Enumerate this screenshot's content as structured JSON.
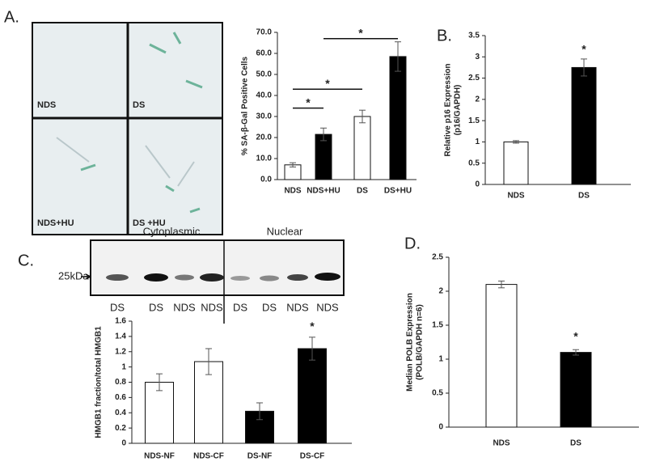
{
  "panel_labels": [
    "A.",
    "B.",
    "C.",
    "D."
  ],
  "micrographs": [
    {
      "label": "NDS"
    },
    {
      "label": "DS"
    },
    {
      "label": "NDS+HU"
    },
    {
      "label": "DS +HU"
    }
  ],
  "blot": {
    "headers": [
      "Cytoplasmic",
      "Nuclear"
    ],
    "marker": "25kDa",
    "lanes": [
      "DS",
      "DS",
      "NDS",
      "NDS",
      "DS",
      "DS",
      "NDS",
      "NDS"
    ]
  },
  "chart_data": [
    {
      "type": "bar",
      "ylabel": [
        "% SA-β-Gal Positive Cells"
      ],
      "categories": [
        "NDS",
        "NDS+HU",
        "DS",
        "DS+HU"
      ],
      "values": [
        7,
        21.5,
        30,
        58.5
      ],
      "errors": [
        1,
        3,
        3,
        7
      ],
      "colors": [
        "#ffffff",
        "#000000",
        "#ffffff",
        "#000000"
      ],
      "ylim": [
        0,
        70
      ],
      "yticks": [
        {
          "value": 0,
          "label": "0.0"
        },
        {
          "value": 10,
          "label": "10.0"
        },
        {
          "value": 20,
          "label": "20.0"
        },
        {
          "value": 30,
          "label": "30.0"
        },
        {
          "value": 40,
          "label": "40.0"
        },
        {
          "value": 50,
          "label": "50.0"
        },
        {
          "value": 60,
          "label": "60.0"
        },
        {
          "value": 70,
          "label": "70.0"
        }
      ],
      "annotations": [
        {
          "text": "*",
          "y": 34,
          "categories": [
            0,
            1
          ]
        },
        {
          "text": "*",
          "y": 43,
          "categories": [
            0,
            2
          ]
        },
        {
          "text": "*",
          "y": 67,
          "categories": [
            1,
            3
          ]
        }
      ]
    },
    {
      "type": "bar",
      "ylabel": [
        "Relative p16 Expression",
        "(p16/GAPDH)"
      ],
      "categories": [
        "NDS",
        "DS"
      ],
      "values": [
        1,
        2.75
      ],
      "errors": [
        0.03,
        0.2
      ],
      "colors": [
        "#ffffff",
        "#000000"
      ],
      "ylim": [
        0,
        3.5
      ],
      "yticks": [
        0,
        0.5,
        1,
        1.5,
        2,
        2.5,
        3,
        3.5
      ],
      "annotations": [
        {
          "text": "*",
          "y": 3.05,
          "categories": [
            1
          ]
        }
      ]
    },
    {
      "type": "bar",
      "ylabel": [
        "HMGB1 fraction/total HMGB1"
      ],
      "categories": [
        "NDS-NF",
        "NDS-CF",
        "DS-NF",
        "DS-CF"
      ],
      "values": [
        0.8,
        1.07,
        0.42,
        1.24
      ],
      "errors": [
        0.11,
        0.17,
        0.11,
        0.15
      ],
      "colors": [
        "#ffffff",
        "#ffffff",
        "#000000",
        "#000000"
      ],
      "ylim": [
        0,
        1.6
      ],
      "yticks": [
        0,
        0.2,
        0.4,
        0.6,
        0.8,
        1,
        1.2,
        1.4,
        1.6
      ],
      "annotations": [
        {
          "text": "*",
          "y": 1.46,
          "categories": [
            3
          ]
        }
      ]
    },
    {
      "type": "bar",
      "ylabel": [
        "Median POLB Expression",
        "(POLB/GAPDH n=6)"
      ],
      "categories": [
        "NDS",
        "DS"
      ],
      "values": [
        2.1,
        1.1
      ],
      "errors": [
        0.05,
        0.04
      ],
      "colors": [
        "#ffffff",
        "#000000"
      ],
      "ylim": [
        0,
        2.5
      ],
      "yticks": [
        0,
        0.5,
        1,
        1.5,
        2,
        2.5
      ],
      "annotations": [
        {
          "text": "*",
          "y": 1.25,
          "categories": [
            1
          ]
        }
      ]
    }
  ]
}
